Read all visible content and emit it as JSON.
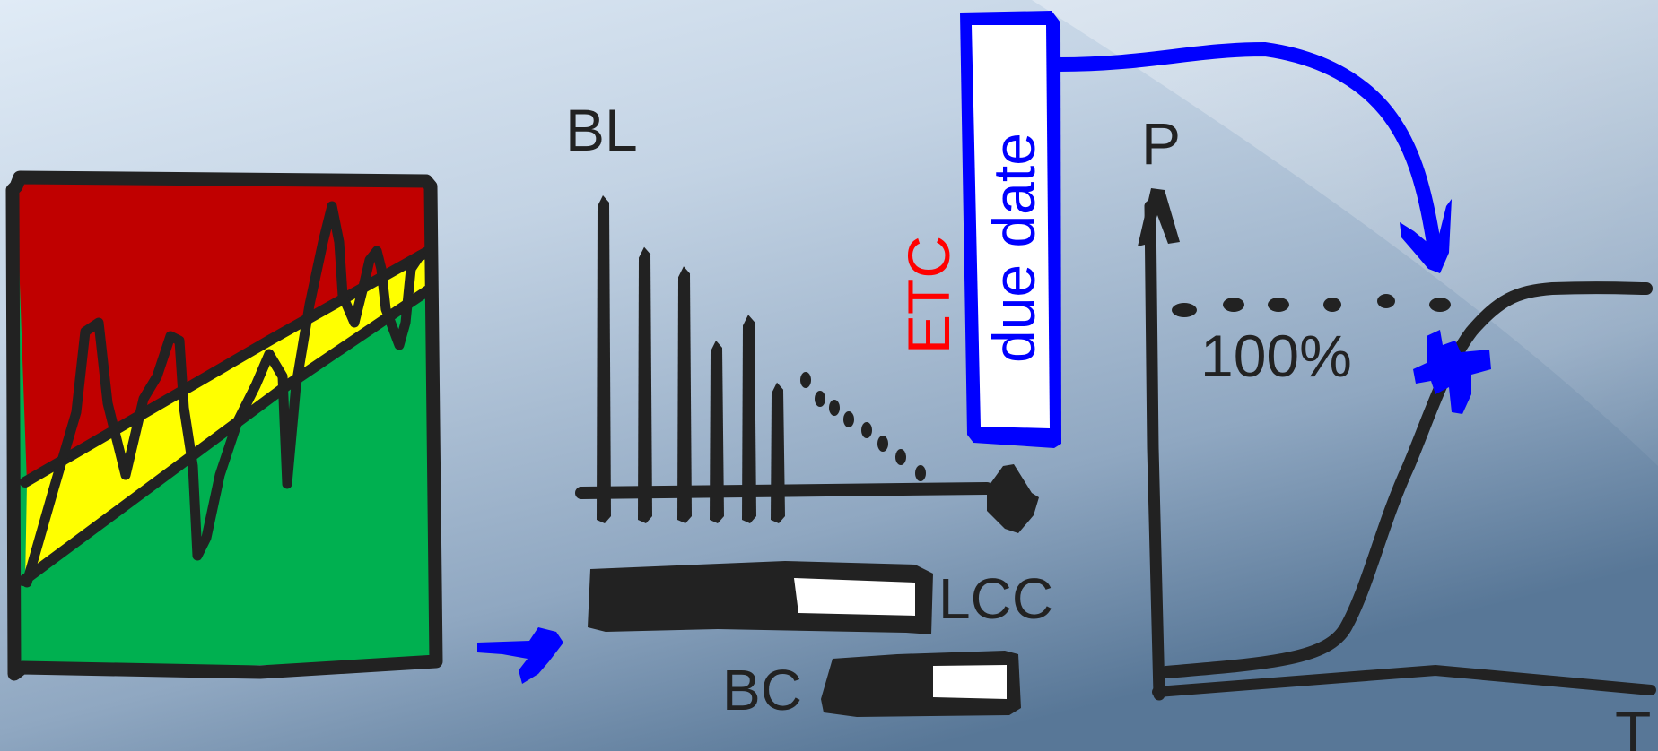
{
  "labels": {
    "bl": "BL",
    "lcc": "LCC",
    "bc": "BC",
    "etc": "ETC",
    "due_date": "due date",
    "p_axis": "P",
    "t_axis": "T",
    "percent": "100%"
  },
  "colors": {
    "red_zone": "#c00000",
    "yellow_zone": "#ffff00",
    "green_zone": "#00b050",
    "outline": "#222222",
    "arrow": "#0000ff",
    "etc_text": "#ff0000",
    "due_date_text": "#0000ff",
    "background_light": "#dde8f3",
    "background_dark": "#5a7898"
  },
  "bl_spikes": [
    1.0,
    0.84,
    0.78,
    0.55,
    0.63,
    0.42
  ],
  "icons": [
    "right-arrow-icon",
    "burst-icon",
    "curved-arrow-icon"
  ]
}
